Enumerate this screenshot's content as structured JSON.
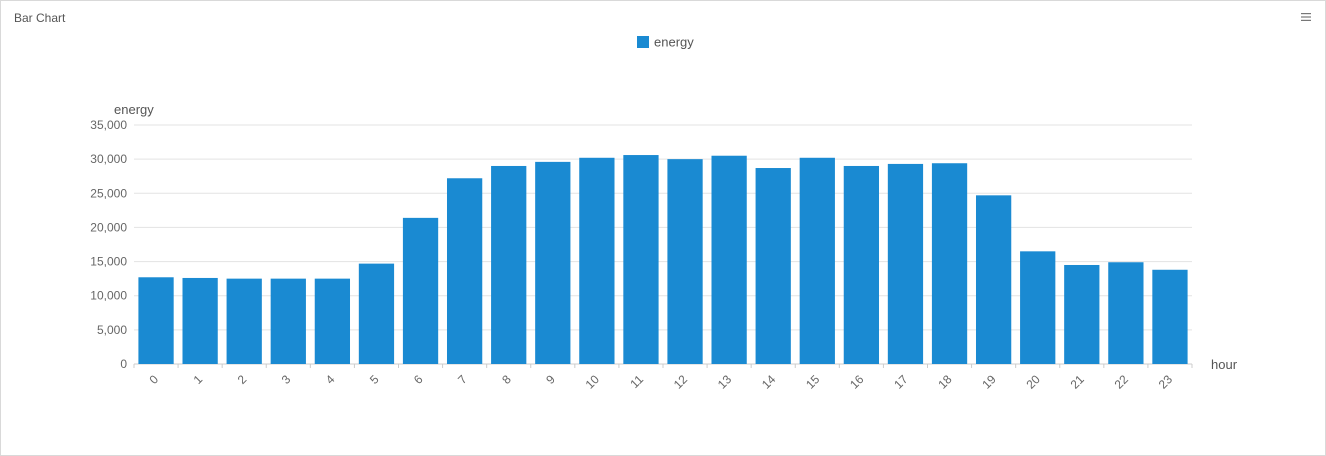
{
  "panel": {
    "title": "Bar Chart",
    "menu_icon": "hamburger-menu-icon"
  },
  "colors": {
    "bar": "#1a8ad2",
    "grid": "#e3e3e3",
    "axis": "#cccccc"
  },
  "chart_data": {
    "type": "bar",
    "title": "",
    "xlabel": "hour",
    "ylabel": "energy",
    "legend": {
      "position": "top-center",
      "entries": [
        "energy"
      ]
    },
    "grid": true,
    "ylim": [
      0,
      35000
    ],
    "y_ticks": [
      "0",
      "5,000",
      "10,000",
      "15,000",
      "20,000",
      "25,000",
      "30,000",
      "35,000"
    ],
    "categories": [
      "0",
      "1",
      "2",
      "3",
      "4",
      "5",
      "6",
      "7",
      "8",
      "9",
      "10",
      "11",
      "12",
      "13",
      "14",
      "15",
      "16",
      "17",
      "18",
      "19",
      "20",
      "21",
      "22",
      "23"
    ],
    "series": [
      {
        "name": "energy",
        "values": [
          12700,
          12600,
          12500,
          12500,
          12500,
          14700,
          21400,
          27200,
          29000,
          29600,
          30200,
          30600,
          30000,
          30500,
          28700,
          30200,
          29000,
          29300,
          29400,
          24700,
          16500,
          14500,
          14900,
          13800
        ]
      }
    ]
  }
}
